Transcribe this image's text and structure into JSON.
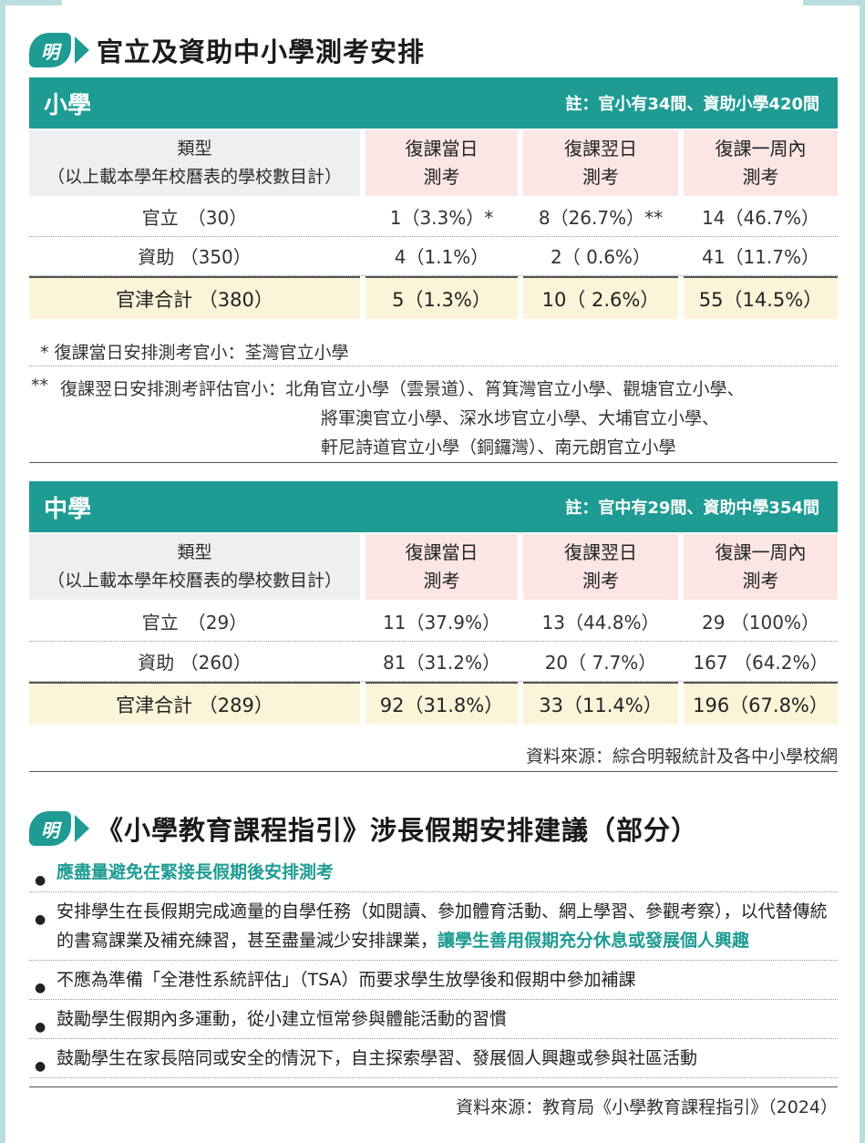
{
  "section1": {
    "badge": "明",
    "title": "官立及資助中小學測考安排"
  },
  "primary": {
    "label": "小學",
    "note": "註：官小有34間、資助小學420間",
    "header": {
      "type_line1": "類型",
      "type_line2": "（以上載本學年校曆表的學校數目計）",
      "cols": [
        {
          "line1": "復課當日",
          "line2": "測考"
        },
        {
          "line1": "復課翌日",
          "line2": "測考"
        },
        {
          "line1": "復課一周內",
          "line2": "測考"
        }
      ]
    },
    "rows": [
      {
        "label": "官立　（30）",
        "values": [
          "1（3.3%）*",
          "8（26.7%）**",
          "14（46.7%）"
        ]
      },
      {
        "label": "資助 （350）",
        "values": [
          "4（1.1%）",
          "2（  0.6%）",
          "41（11.7%）"
        ]
      }
    ],
    "total": {
      "label": "官津合計 （380）",
      "values": [
        "5（1.3%）",
        "10（  2.6%）",
        "55（14.5%）"
      ]
    },
    "footnote1": "* 復課當日安排測考官小：荃灣官立小學",
    "footnote2_mark": "**",
    "footnote2_lines": [
      "復課翌日安排測考評估官小：北角官立小學（雲景道）、筲箕灣官立小學、觀塘官立小學、",
      "將軍澳官立小學、深水埗官立小學、大埔官立小學、",
      "軒尼詩道官立小學（銅鑼灣）、南元朗官立小學"
    ]
  },
  "secondary": {
    "label": "中學",
    "note": "註：官中有29間、資助中學354間",
    "header": {
      "type_line1": "類型",
      "type_line2": "（以上載本學年校曆表的學校數目計）",
      "cols": [
        {
          "line1": "復課當日",
          "line2": "測考"
        },
        {
          "line1": "復課翌日",
          "line2": "測考"
        },
        {
          "line1": "復課一周內",
          "line2": "測考"
        }
      ]
    },
    "rows": [
      {
        "label": "官立　（29）",
        "values": [
          "11（37.9%）",
          "13（44.8%）",
          "29 （100%）"
        ]
      },
      {
        "label": "資助 （260）",
        "values": [
          "81（31.2%）",
          "20（  7.7%）",
          "167 （64.2%）"
        ]
      }
    ],
    "total": {
      "label": "官津合計 （289）",
      "values": [
        "92（31.8%）",
        "33（11.4%）",
        "196（67.8%）"
      ]
    },
    "source": "資料來源：綜合明報統計及各中小學校網"
  },
  "section2": {
    "badge": "明",
    "title": "《小學教育課程指引》涉長假期安排建議（部分）",
    "bullets": [
      {
        "parts": [
          {
            "text": "應盡量避免在緊接長假期後安排測考",
            "hl": true
          }
        ]
      },
      {
        "parts": [
          {
            "text": "安排學生在長假期完成適量的自學任務（如閱讀、參加體育活動、網上學習、參觀考察），以代替傳統的書寫課業及補充練習，甚至盡量減少安排課業，",
            "hl": false
          },
          {
            "text": "讓學生善用假期充分休息或發展個人興趣",
            "hl": true
          }
        ]
      },
      {
        "parts": [
          {
            "text": "不應為準備「全港性系統評估」（TSA）而要求學生放學後和假期中參加補課",
            "hl": false
          }
        ]
      },
      {
        "parts": [
          {
            "text": "鼓勵學生假期內多運動，從小建立恒常參與體能活動的習慣",
            "hl": false
          }
        ]
      },
      {
        "parts": [
          {
            "text": "鼓勵學生在家長陪同或安全的情況下，自主探索學習、發展個人興趣或參與社區活動",
            "hl": false
          }
        ]
      }
    ],
    "source": "資料來源：教育局《小學教育課程指引》（2024）"
  },
  "colors": {
    "accent": "#1e9c93",
    "header_pink": "#fbe6e4",
    "header_grey": "#eeeff1",
    "total_cream": "#fcf4d9",
    "frame": "#b9dedd"
  }
}
